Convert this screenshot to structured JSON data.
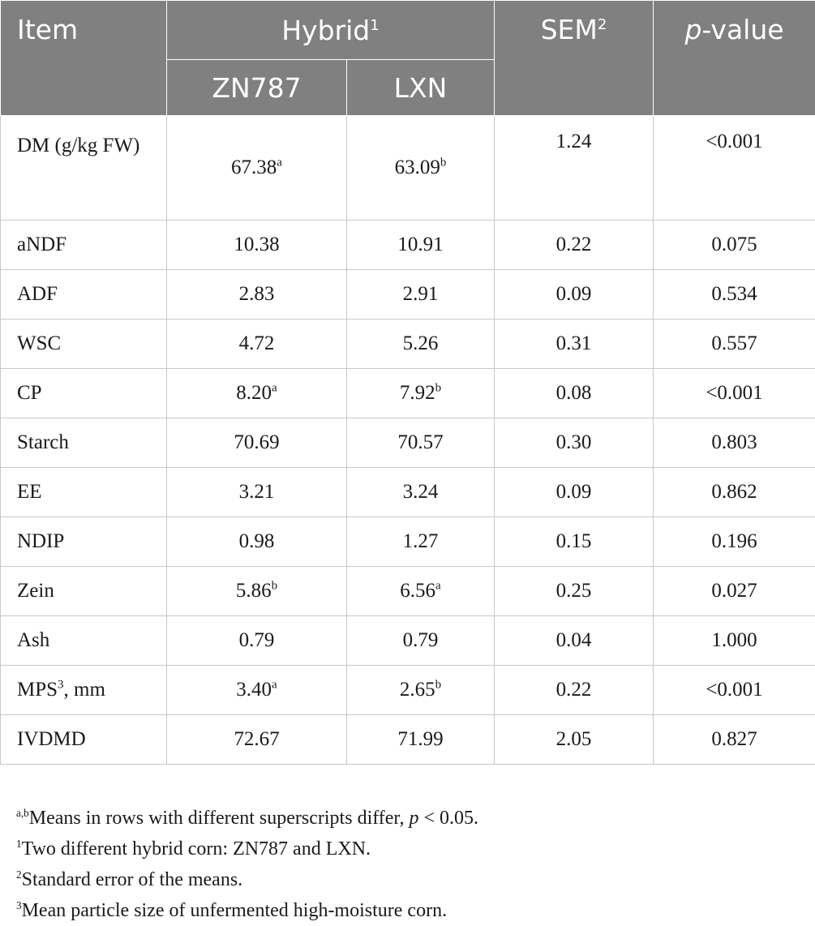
{
  "header": {
    "item": "Item",
    "hybrid": "Hybrid",
    "hybrid_sup": "1",
    "sem": "SEM",
    "sem_sup": "2",
    "pvalue_italic": "p",
    "pvalue_rest": "-value",
    "col1": "ZN787",
    "col2": "LXN"
  },
  "rows": [
    {
      "item": "DM (g/kg FW)",
      "item_sup": "",
      "item_suffix": "",
      "v1": "67.38",
      "s1": "a",
      "v2": "63.09",
      "s2": "b",
      "sem": "1.24",
      "p": "<0.001"
    },
    {
      "item": "aNDF",
      "item_sup": "",
      "item_suffix": "",
      "v1": "10.38",
      "s1": "",
      "v2": "10.91",
      "s2": "",
      "sem": "0.22",
      "p": "0.075"
    },
    {
      "item": "ADF",
      "item_sup": "",
      "item_suffix": "",
      "v1": "2.83",
      "s1": "",
      "v2": "2.91",
      "s2": "",
      "sem": "0.09",
      "p": "0.534"
    },
    {
      "item": "WSC",
      "item_sup": "",
      "item_suffix": "",
      "v1": "4.72",
      "s1": "",
      "v2": "5.26",
      "s2": "",
      "sem": "0.31",
      "p": "0.557"
    },
    {
      "item": "CP",
      "item_sup": "",
      "item_suffix": "",
      "v1": "8.20",
      "s1": "a",
      "v2": "7.92",
      "s2": "b",
      "sem": "0.08",
      "p": "<0.001"
    },
    {
      "item": "Starch",
      "item_sup": "",
      "item_suffix": "",
      "v1": "70.69",
      "s1": "",
      "v2": "70.57",
      "s2": "",
      "sem": "0.30",
      "p": "0.803"
    },
    {
      "item": "EE",
      "item_sup": "",
      "item_suffix": "",
      "v1": "3.21",
      "s1": "",
      "v2": "3.24",
      "s2": "",
      "sem": "0.09",
      "p": "0.862"
    },
    {
      "item": "NDIP",
      "item_sup": "",
      "item_suffix": "",
      "v1": "0.98",
      "s1": "",
      "v2": "1.27",
      "s2": "",
      "sem": "0.15",
      "p": "0.196"
    },
    {
      "item": "Zein",
      "item_sup": "",
      "item_suffix": "",
      "v1": "5.86",
      "s1": "b",
      "v2": "6.56",
      "s2": "a",
      "sem": "0.25",
      "p": "0.027"
    },
    {
      "item": "Ash",
      "item_sup": "",
      "item_suffix": "",
      "v1": "0.79",
      "s1": "",
      "v2": "0.79",
      "s2": "",
      "sem": "0.04",
      "p": "1.000"
    },
    {
      "item": "MPS",
      "item_sup": "3",
      "item_suffix": ", mm",
      "v1": "3.40",
      "s1": "a",
      "v2": "2.65",
      "s2": "b",
      "sem": "0.22",
      "p": "<0.001"
    },
    {
      "item": "IVDMD",
      "item_sup": "",
      "item_suffix": "",
      "v1": "72.67",
      "s1": "",
      "v2": "71.99",
      "s2": "",
      "sem": "2.05",
      "p": "0.827"
    }
  ],
  "footnotes": {
    "n0_sup": "a,b",
    "n0_text": "Means in rows with different superscripts differ, ",
    "n0_p": "p",
    "n0_tail": " < 0.05.",
    "n1_sup": "1",
    "n1_text": "Two different hybrid corn: ZN787 and LXN.",
    "n2_sup": "2",
    "n2_text": "Standard error of the means.",
    "n3_sup": "3",
    "n3_text": "Mean particle size of unfermented high-moisture corn."
  }
}
